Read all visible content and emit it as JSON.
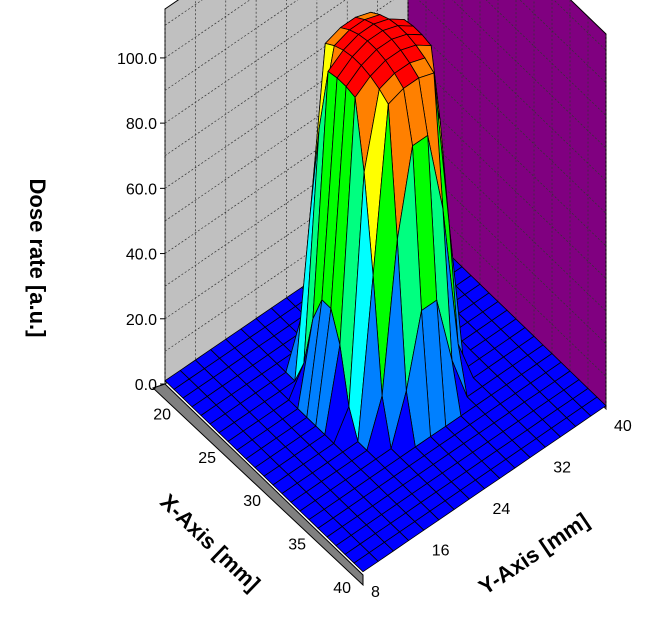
{
  "chart_data": {
    "type": "surface3d",
    "zlabel": "Dose rate [a.u.]",
    "xlabel": "X-Axis [mm]",
    "ylabel": "Y-Axis [mm]",
    "zlim": [
      0,
      115
    ],
    "xlim": [
      18,
      40
    ],
    "ylim": [
      8,
      40
    ],
    "z_ticks": [
      "0.0",
      "20.0",
      "40.0",
      "60.0",
      "80.0",
      "100.0"
    ],
    "x_ticks": [
      "20",
      "25",
      "30",
      "35",
      "40"
    ],
    "y_ticks": [
      "8",
      "16",
      "24",
      "32",
      "40"
    ],
    "grid": true,
    "wall_colors": {
      "back_left": "#c0c0c0",
      "back_right": "#800080",
      "floor_side": "#808080"
    },
    "color_bands": [
      {
        "from": 0,
        "to": 10,
        "color": "#0000ff"
      },
      {
        "from": 10,
        "to": 25,
        "color": "#0080ff"
      },
      {
        "from": 25,
        "to": 40,
        "color": "#00ffff"
      },
      {
        "from": 40,
        "to": 55,
        "color": "#00ff80"
      },
      {
        "from": 55,
        "to": 70,
        "color": "#00ff00"
      },
      {
        "from": 70,
        "to": 85,
        "color": "#ffff00"
      },
      {
        "from": 85,
        "to": 100,
        "color": "#ff8000"
      },
      {
        "from": 100,
        "to": 115,
        "color": "#ff0000"
      }
    ],
    "surface": {
      "x_center": 27.5,
      "y_center": 25,
      "flat_top_radius_mm": 4.3,
      "beam_edge_radius_mm": 6.3,
      "plateau_dose": 98,
      "peak_dose": 104,
      "grid_x_count": 23,
      "grid_y_count": 17
    }
  }
}
